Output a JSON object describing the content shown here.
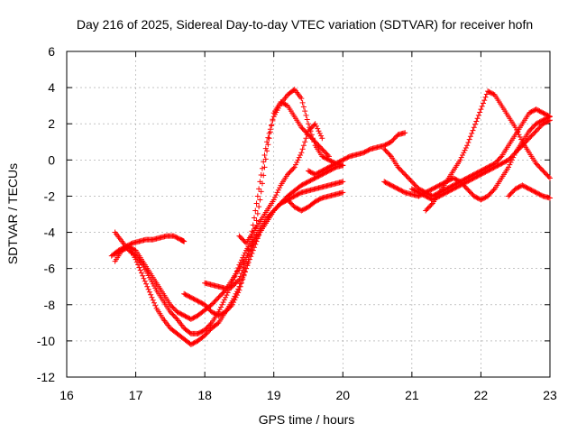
{
  "chart_data": {
    "type": "scatter",
    "title": "Day 216 of 2025, Sidereal Day-to-day VTEC variation (SDTVAR) for receiver hofn",
    "xlabel": "GPS time / hours",
    "ylabel": "SDTVAR / TECUs",
    "xlim": [
      16,
      23
    ],
    "ylim": [
      -12,
      6
    ],
    "xticks": [
      16,
      17,
      18,
      19,
      20,
      21,
      22,
      23
    ],
    "yticks": [
      -12,
      -10,
      -8,
      -6,
      -4,
      -2,
      0,
      2,
      4,
      6
    ],
    "grid": true,
    "marker": "+",
    "color": "#ff0000",
    "series": [
      {
        "name": "s1",
        "x": [
          16.65,
          16.75,
          16.85,
          16.95,
          17.05,
          17.15,
          17.25,
          17.35,
          17.45,
          17.55,
          17.65,
          17.7
        ],
        "y": [
          -5.3,
          -5.0,
          -4.8,
          -4.6,
          -4.5,
          -4.4,
          -4.4,
          -4.3,
          -4.2,
          -4.2,
          -4.4,
          -4.5
        ]
      },
      {
        "name": "s2",
        "x": [
          16.7,
          16.8,
          16.9,
          17.0,
          17.1,
          17.2,
          17.3,
          17.4,
          17.5,
          17.6,
          17.7,
          17.8,
          17.9,
          18.0,
          18.1,
          18.2,
          18.3,
          18.4,
          18.5,
          18.6,
          18.7,
          18.8,
          18.9,
          19.0,
          19.1,
          19.2,
          19.3,
          19.4,
          19.5,
          19.6,
          19.7,
          19.8,
          19.9,
          20.0
        ],
        "y": [
          -4.0,
          -4.5,
          -5.0,
          -5.3,
          -5.8,
          -6.5,
          -7.2,
          -7.8,
          -8.4,
          -8.8,
          -9.3,
          -9.6,
          -9.6,
          -9.4,
          -9.0,
          -8.4,
          -7.6,
          -6.8,
          -5.8,
          -5.0,
          -4.4,
          -3.8,
          -3.2,
          -2.8,
          -2.4,
          -2.0,
          -1.7,
          -1.4,
          -1.2,
          -1.0,
          -0.8,
          -0.6,
          -0.4,
          -0.3
        ]
      },
      {
        "name": "s3",
        "x": [
          16.7,
          16.8,
          16.9,
          17.0,
          17.1,
          17.2,
          17.3,
          17.4,
          17.5,
          17.6,
          17.7,
          17.8,
          17.9,
          18.0,
          18.1,
          18.2,
          18.3,
          18.4,
          18.5,
          18.6,
          18.7,
          18.8,
          18.9,
          19.0,
          19.1,
          19.2,
          19.3,
          19.4,
          19.5,
          19.6,
          19.7,
          19.8,
          19.9,
          20.0
        ],
        "y": [
          -5.2,
          -5.0,
          -4.8,
          -5.5,
          -6.4,
          -7.3,
          -8.2,
          -8.8,
          -9.3,
          -9.6,
          -9.9,
          -10.2,
          -10.0,
          -9.7,
          -9.3,
          -9.0,
          -8.4,
          -7.8,
          -7.0,
          -6.0,
          -5.0,
          -4.0,
          -3.4,
          -2.8,
          -2.4,
          -2.2,
          -2.0,
          -1.8,
          -1.7,
          -1.6,
          -1.5,
          -1.4,
          -1.3,
          -1.2
        ]
      },
      {
        "name": "s4",
        "x": [
          16.7,
          16.8,
          16.9,
          17.0,
          17.1,
          17.2,
          17.3,
          17.4,
          17.5,
          17.6,
          17.7,
          17.8,
          17.9,
          18.0,
          18.1,
          18.2,
          18.3,
          18.4,
          18.5,
          18.6,
          18.7,
          18.8,
          18.9,
          19.0,
          19.1,
          19.2,
          19.3,
          19.4,
          19.5,
          19.6,
          19.7,
          19.8,
          19.9,
          20.0
        ],
        "y": [
          -5.6,
          -5.0,
          -4.8,
          -5.0,
          -5.6,
          -6.2,
          -6.8,
          -7.4,
          -8.0,
          -8.4,
          -8.6,
          -8.8,
          -8.6,
          -8.3,
          -8.0,
          -7.6,
          -7.2,
          -6.6,
          -6.0,
          -5.4,
          -4.7,
          -4.0,
          -3.4,
          -2.8,
          -2.4,
          -2.2,
          -2.6,
          -2.8,
          -2.6,
          -2.3,
          -2.1,
          -2.0,
          -1.9,
          -1.8
        ]
      },
      {
        "name": "s5",
        "x": [
          17.7,
          17.8,
          17.9,
          18.0,
          18.1,
          18.2,
          18.3,
          18.4,
          18.5,
          18.6,
          18.7,
          18.8,
          18.9,
          19.0,
          19.1,
          19.2,
          19.3,
          19.4,
          19.5,
          19.6,
          19.7,
          19.8
        ],
        "y": [
          -7.4,
          -7.6,
          -7.8,
          -8.0,
          -8.4,
          -8.6,
          -8.4,
          -8.0,
          -7.2,
          -6.0,
          -4.5,
          -2.2,
          0.5,
          2.6,
          3.2,
          3.0,
          2.4,
          1.8,
          1.4,
          1.0,
          0.6,
          0.2
        ]
      },
      {
        "name": "s6",
        "x": [
          18.0,
          18.1,
          18.2,
          18.3,
          18.4,
          18.5,
          18.6,
          18.7,
          18.8,
          18.9,
          19.0,
          19.1,
          19.2,
          19.3,
          19.4,
          19.5,
          19.6,
          19.7,
          19.8,
          19.9,
          20.0
        ],
        "y": [
          -6.8,
          -6.9,
          -7.0,
          -7.1,
          -7.0,
          -6.6,
          -5.6,
          -3.6,
          -1.2,
          1.0,
          2.4,
          3.1,
          3.6,
          3.9,
          3.4,
          2.0,
          0.8,
          0.2,
          0.0,
          -0.2,
          -0.3
        ]
      },
      {
        "name": "s7",
        "x": [
          18.5,
          18.6,
          18.7,
          18.8,
          18.9,
          19.0,
          19.1,
          19.2,
          19.3,
          19.4,
          19.5,
          19.6,
          19.7
        ],
        "y": [
          -4.2,
          -4.6,
          -4.0,
          -3.4,
          -2.8,
          -2.2,
          -1.4,
          -0.8,
          -0.4,
          0.4,
          1.6,
          2.0,
          1.2
        ]
      },
      {
        "name": "s8",
        "x": [
          19.5,
          19.6,
          19.7,
          19.8,
          19.9,
          20.0,
          20.1,
          20.2,
          20.3,
          20.4,
          20.5,
          20.6,
          20.7,
          20.8,
          20.9
        ],
        "y": [
          -0.6,
          -0.8,
          -0.6,
          -0.4,
          -0.2,
          0.0,
          0.2,
          0.3,
          0.4,
          0.6,
          0.7,
          0.8,
          1.0,
          1.4,
          1.5
        ]
      },
      {
        "name": "s9",
        "x": [
          20.6,
          20.7,
          20.8,
          20.9,
          21.0,
          21.1,
          21.2,
          21.3,
          21.4,
          21.5,
          21.6,
          21.7,
          21.8,
          21.9,
          22.0,
          22.1,
          22.2,
          22.3,
          22.4,
          22.5,
          22.6,
          22.7,
          22.8,
          22.9,
          23.0
        ],
        "y": [
          0.6,
          0.2,
          -0.4,
          -0.8,
          -1.2,
          -1.6,
          -1.8,
          -2.0,
          -1.8,
          -1.6,
          -1.4,
          -1.2,
          -1.0,
          -0.8,
          -0.6,
          -0.4,
          -0.2,
          0.2,
          0.8,
          1.4,
          2.0,
          2.6,
          2.8,
          2.6,
          2.4
        ]
      },
      {
        "name": "s10",
        "x": [
          20.6,
          20.7,
          20.8,
          20.9,
          21.0,
          21.1,
          21.2,
          21.3,
          21.4,
          21.5,
          21.6,
          21.7,
          21.8,
          21.9,
          22.0,
          22.1,
          22.2,
          22.3,
          22.4,
          22.5,
          22.6,
          22.7,
          22.8,
          22.9,
          23.0
        ],
        "y": [
          -1.2,
          -1.4,
          -1.6,
          -1.8,
          -1.9,
          -2.0,
          -1.8,
          -1.6,
          -1.4,
          -1.2,
          -1.0,
          -1.2,
          -1.6,
          -2.0,
          -2.2,
          -2.0,
          -1.6,
          -1.0,
          -0.4,
          0.4,
          1.0,
          1.6,
          2.0,
          2.2,
          2.4
        ]
      },
      {
        "name": "s11",
        "x": [
          21.2,
          21.3,
          21.4,
          21.5,
          21.6,
          21.7,
          21.8,
          21.9,
          22.0,
          22.1,
          22.2,
          22.3,
          22.4,
          22.5,
          22.6,
          22.7,
          22.8,
          22.9,
          23.0
        ],
        "y": [
          -2.8,
          -2.4,
          -1.8,
          -1.2,
          -0.6,
          0.0,
          0.8,
          1.8,
          2.8,
          3.8,
          3.6,
          3.0,
          2.4,
          1.8,
          1.0,
          0.4,
          -0.2,
          -0.6,
          -1.0
        ]
      },
      {
        "name": "s12",
        "x": [
          21.0,
          21.1,
          21.2,
          21.3,
          21.4,
          21.5,
          21.6,
          21.7,
          21.8,
          21.9,
          22.0,
          22.1,
          22.2,
          22.3,
          22.4,
          22.5,
          22.6,
          22.7,
          22.8,
          22.9,
          23.0
        ],
        "y": [
          -1.6,
          -1.8,
          -2.0,
          -2.2,
          -2.0,
          -1.8,
          -1.6,
          -1.4,
          -1.2,
          -1.0,
          -0.8,
          -0.6,
          -0.4,
          -0.2,
          0.0,
          0.4,
          0.8,
          1.2,
          1.6,
          2.0,
          2.2
        ]
      },
      {
        "name": "s13",
        "x": [
          22.4,
          22.5,
          22.6,
          22.7,
          22.8,
          22.9,
          23.0
        ],
        "y": [
          -2.0,
          -1.6,
          -1.4,
          -1.6,
          -1.8,
          -2.0,
          -2.1
        ]
      }
    ]
  }
}
